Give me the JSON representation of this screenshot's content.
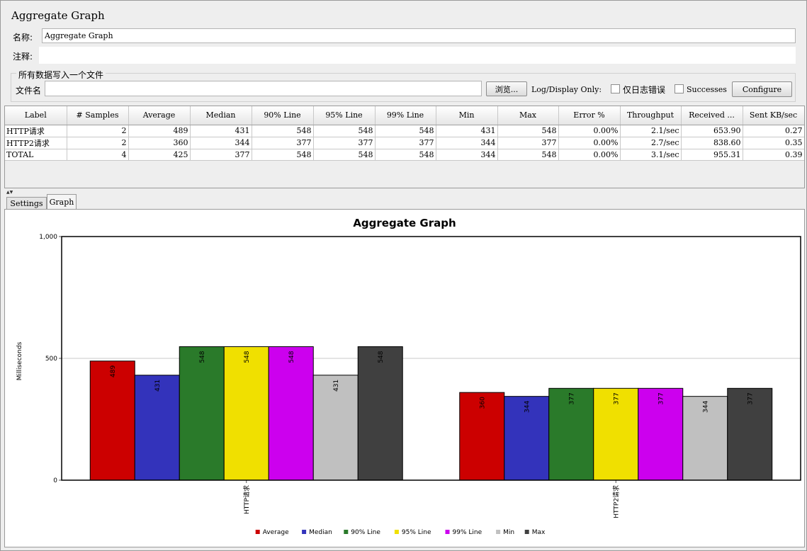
{
  "window": {
    "title": "Aggregate Graph"
  },
  "form": {
    "name_label": "名称:",
    "name_value": "Aggregate Graph",
    "comment_label": "注释:",
    "comment_value": "",
    "file_group_title": "所有数据写入一个文件",
    "filename_label": "文件名",
    "filename_value": "",
    "browse_button": "浏览...",
    "log_display_label": "Log/Display Only:",
    "errors_only_label": "仅日志错误",
    "successes_label": "Successes",
    "configure_button": "Configure"
  },
  "table": {
    "columns": [
      "Label",
      "# Samples",
      "Average",
      "Median",
      "90% Line",
      "95% Line",
      "99% Line",
      "Min",
      "Max",
      "Error %",
      "Throughput",
      "Received ...",
      "Sent KB/sec"
    ],
    "rows": [
      [
        "HTTP请求",
        "2",
        "489",
        "431",
        "548",
        "548",
        "548",
        "431",
        "548",
        "0.00%",
        "2.1/sec",
        "653.90",
        "0.27"
      ],
      [
        "HTTP2请求",
        "2",
        "360",
        "344",
        "377",
        "377",
        "377",
        "344",
        "377",
        "0.00%",
        "2.7/sec",
        "838.60",
        "0.35"
      ],
      [
        "TOTAL",
        "4",
        "425",
        "377",
        "548",
        "548",
        "548",
        "344",
        "548",
        "0.00%",
        "3.1/sec",
        "955.31",
        "0.39"
      ]
    ]
  },
  "tabs": [
    {
      "label": "Settings",
      "active": false
    },
    {
      "label": "Graph",
      "active": true
    }
  ],
  "colors": {
    "Average": "#cc0000",
    "Median": "#3333bb",
    "90% Line": "#2a7a2a",
    "95% Line": "#f0e000",
    "99% Line": "#cc00ee",
    "Min": "#c0c0c0",
    "Max": "#404040"
  },
  "chart_data": {
    "type": "bar",
    "title": "Aggregate Graph",
    "ylabel": "Milliseconds",
    "xlabel": "",
    "ylim": [
      0,
      1000
    ],
    "yticks": [
      "0",
      "500",
      "1,000"
    ],
    "ytick_values": [
      0,
      500,
      1000
    ],
    "categories": [
      "HTTP请求",
      "HTTP2请求"
    ],
    "series": [
      {
        "name": "Average",
        "values": [
          489,
          360
        ]
      },
      {
        "name": "Median",
        "values": [
          431,
          344
        ]
      },
      {
        "name": "90% Line",
        "values": [
          548,
          377
        ]
      },
      {
        "name": "95% Line",
        "values": [
          548,
          377
        ]
      },
      {
        "name": "99% Line",
        "values": [
          548,
          377
        ]
      },
      {
        "name": "Min",
        "values": [
          431,
          344
        ]
      },
      {
        "name": "Max",
        "values": [
          548,
          377
        ]
      }
    ],
    "grid": true,
    "legend_position": "bottom"
  }
}
